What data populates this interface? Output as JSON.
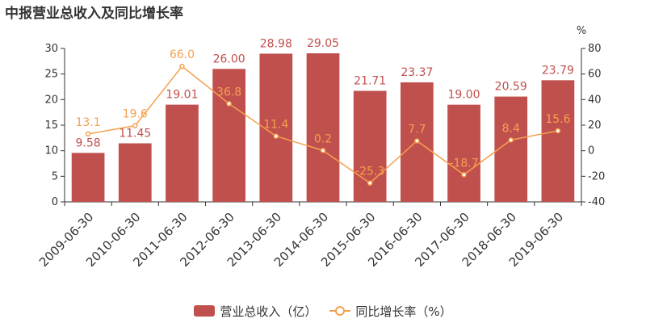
{
  "title": "中报营业总收入及同比增长率",
  "chart_data": {
    "type": "bar",
    "categories": [
      "2009-06-30",
      "2010-06-30",
      "2011-06-30",
      "2012-06-30",
      "2013-06-30",
      "2014-06-30",
      "2015-06-30",
      "2016-06-30",
      "2017-06-30",
      "2018-06-30",
      "2019-06-30"
    ],
    "series": [
      {
        "name": "营业总收入（亿）",
        "type": "bar",
        "axis": "left",
        "values": [
          9.58,
          11.45,
          19.01,
          26.0,
          28.98,
          29.05,
          21.71,
          23.37,
          19.0,
          20.59,
          23.79
        ],
        "labels": [
          "9.58",
          "11.45",
          "19.01",
          "26.00",
          "28.98",
          "29.05",
          "21.71",
          "23.37",
          "19.00",
          "20.59",
          "23.79"
        ],
        "color": "#c0504d"
      },
      {
        "name": "同比增长率（%）",
        "type": "line",
        "axis": "right",
        "values": [
          13.1,
          19.6,
          66.0,
          36.8,
          11.4,
          0.2,
          -25.3,
          7.7,
          -18.7,
          8.4,
          15.6
        ],
        "labels": [
          "13.1",
          "19.6",
          "66.0",
          "36.8",
          "11.4",
          "0.2",
          "-25.3",
          "7.7",
          "-18.7",
          "8.4",
          "15.6"
        ],
        "color": "#f5a04e"
      }
    ],
    "y_left": {
      "min": 0,
      "max": 30,
      "ticks": [
        0,
        5,
        10,
        15,
        20,
        25,
        30
      ]
    },
    "y_right": {
      "min": -40,
      "max": 80,
      "ticks": [
        -40,
        -20,
        0,
        20,
        40,
        60,
        80
      ],
      "unit": "%"
    },
    "legend_position": "bottom",
    "grid": false
  }
}
